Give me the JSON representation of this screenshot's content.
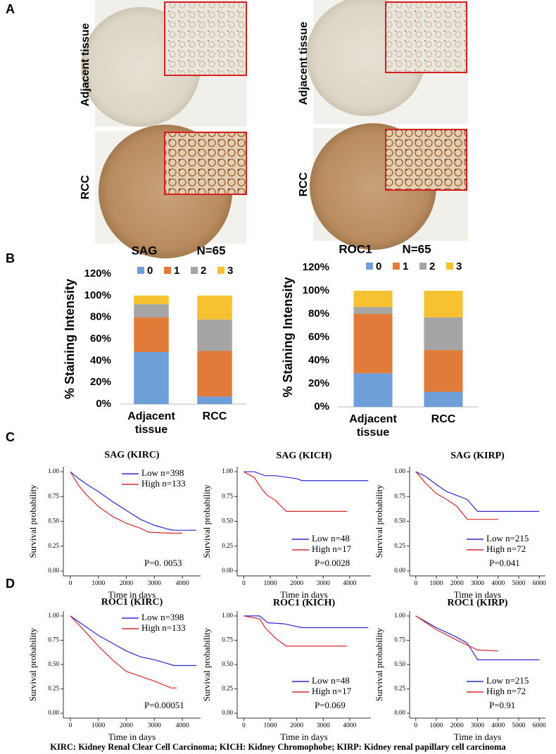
{
  "panel_labels": [
    "A",
    "B",
    "C",
    "D"
  ],
  "images": [
    {
      "label": "Adjacent tissue"
    },
    {
      "label": "RCC"
    },
    {
      "label": "Adjacent tissue"
    },
    {
      "label": "RCC"
    }
  ],
  "chart_data": [
    {
      "type": "stacked_bar",
      "title": "SAG",
      "subtitle": "N=65",
      "ylabel": "% Staining Intensity",
      "categories": [
        "Adjacent tissue",
        "RCC"
      ],
      "series": [
        {
          "name": "0",
          "color": "#6f9fd8",
          "values": [
            48,
            7
          ]
        },
        {
          "name": "1",
          "color": "#e07b39",
          "values": [
            32,
            42
          ]
        },
        {
          "name": "2",
          "color": "#a5a5a5",
          "values": [
            12,
            29
          ]
        },
        {
          "name": "3",
          "color": "#f6c232",
          "values": [
            8,
            22
          ]
        }
      ],
      "ylim": [
        0,
        120
      ],
      "yticks": [
        {
          "value": 0,
          "label": "0%"
        },
        {
          "value": 20,
          "label": "20%"
        },
        {
          "value": 40,
          "label": "40%"
        },
        {
          "value": 60,
          "label": "60%"
        },
        {
          "value": 80,
          "label": "80%"
        },
        {
          "value": 100,
          "label": "100%"
        },
        {
          "value": 120,
          "label": "120%"
        }
      ]
    },
    {
      "type": "stacked_bar",
      "title": "ROC1",
      "subtitle": "N=65",
      "ylabel": "% Staining Intensity",
      "categories": [
        "Adjacent tissue",
        "RCC"
      ],
      "series": [
        {
          "name": "0",
          "color": "#6f9fd8",
          "values": [
            29,
            13
          ]
        },
        {
          "name": "1",
          "color": "#e07b39",
          "values": [
            51,
            36
          ]
        },
        {
          "name": "2",
          "color": "#a5a5a5",
          "values": [
            6,
            28
          ]
        },
        {
          "name": "3",
          "color": "#f6c232",
          "values": [
            14,
            23
          ]
        }
      ],
      "ylim": [
        0,
        120
      ],
      "yticks": [
        {
          "value": 0,
          "label": "0%"
        },
        {
          "value": 20,
          "label": "20%"
        },
        {
          "value": 40,
          "label": "40%"
        },
        {
          "value": 60,
          "label": "60%"
        },
        {
          "value": 80,
          "label": "80%"
        },
        {
          "value": 100,
          "label": "100%"
        },
        {
          "value": 120,
          "label": "120%"
        }
      ]
    },
    {
      "type": "line",
      "title": "SAG (KIRC)",
      "xlabel": "Time in days",
      "ylabel": "Survival probability",
      "annotation": "P=0. 0053",
      "legend": "upper right",
      "xlim": [
        -250,
        4650
      ],
      "xticks": [
        0,
        1000,
        2000,
        3000,
        4000
      ],
      "ylim": [
        -0.05,
        1.05
      ],
      "yticks": [
        {
          "value": 0,
          "label": "0.00"
        },
        {
          "value": 0.25,
          "label": "0.25"
        },
        {
          "value": 0.5,
          "label": "0.50"
        },
        {
          "value": 0.75,
          "label": "0.75"
        },
        {
          "value": 1,
          "label": "1.00"
        }
      ],
      "series": [
        {
          "name": "Low n=398",
          "color": "#2a2ad8",
          "x": [
            0,
            300,
            600,
            1000,
            1500,
            2000,
            2500,
            3000,
            3500,
            3700,
            4500
          ],
          "values": [
            1,
            0.93,
            0.87,
            0.8,
            0.7,
            0.61,
            0.52,
            0.46,
            0.42,
            0.41,
            0.41
          ]
        },
        {
          "name": "High n=133",
          "color": "#d82a2a",
          "x": [
            0,
            300,
            600,
            1000,
            1500,
            2000,
            2500,
            2800,
            3600,
            4000
          ],
          "values": [
            1,
            0.86,
            0.76,
            0.65,
            0.55,
            0.48,
            0.43,
            0.39,
            0.38,
            0.38
          ]
        }
      ]
    },
    {
      "type": "line",
      "title": "SAG (KICH)",
      "xlabel": "Time in days",
      "ylabel": "Survival probability",
      "annotation": "P=0.0028",
      "legend": "lower right",
      "xlim": [
        -250,
        4800
      ],
      "xticks": [
        0,
        1000,
        2000,
        3000,
        4000
      ],
      "ylim": [
        -0.05,
        1.05
      ],
      "yticks": [
        {
          "value": 0,
          "label": "0.00"
        },
        {
          "value": 0.25,
          "label": "0.25"
        },
        {
          "value": 0.5,
          "label": "0.50"
        },
        {
          "value": 0.75,
          "label": "0.75"
        },
        {
          "value": 1,
          "label": "1.00"
        }
      ],
      "series": [
        {
          "name": "Low n=48",
          "color": "#2a2ad8",
          "x": [
            0,
            400,
            800,
            1200,
            2000,
            2200,
            4700
          ],
          "values": [
            1,
            1,
            0.96,
            0.96,
            0.93,
            0.91,
            0.91
          ]
        },
        {
          "name": "High n=17",
          "color": "#d82a2a",
          "x": [
            0,
            400,
            700,
            900,
            1200,
            1600,
            3900
          ],
          "values": [
            1,
            0.94,
            0.82,
            0.76,
            0.71,
            0.6,
            0.6
          ]
        }
      ]
    },
    {
      "type": "line",
      "title": "SAG (KIRP)",
      "xlabel": "Time in days",
      "ylabel": "Survival probability",
      "annotation": "P=0.041",
      "legend": "lower right",
      "xlim": [
        -300,
        6300
      ],
      "xticks": [
        0,
        1000,
        2000,
        3000,
        4000,
        5000,
        6000
      ],
      "ylim": [
        -0.05,
        1.05
      ],
      "yticks": [
        {
          "value": 0,
          "label": "0.00"
        },
        {
          "value": 0.25,
          "label": "0.25"
        },
        {
          "value": 0.5,
          "label": "0.50"
        },
        {
          "value": 0.75,
          "label": "0.75"
        },
        {
          "value": 1,
          "label": "1.00"
        }
      ],
      "series": [
        {
          "name": "Low n=215",
          "color": "#2a2ad8",
          "x": [
            0,
            500,
            1000,
            1500,
            2000,
            2500,
            3000,
            4000,
            6000
          ],
          "values": [
            1,
            0.95,
            0.87,
            0.8,
            0.76,
            0.72,
            0.6,
            0.6,
            0.6
          ]
        },
        {
          "name": "High n=72",
          "color": "#d82a2a",
          "x": [
            0,
            500,
            1000,
            1500,
            2000,
            2500,
            3000,
            4000
          ],
          "values": [
            1,
            0.88,
            0.78,
            0.72,
            0.65,
            0.52,
            0.52,
            0.52
          ]
        }
      ]
    },
    {
      "type": "line",
      "title": "ROC1 (KIRC)",
      "xlabel": "Time in days",
      "ylabel": "Survival probability",
      "annotation": "P=0.00051",
      "legend": "upper right",
      "xlim": [
        -250,
        4650
      ],
      "xticks": [
        0,
        1000,
        2000,
        3000,
        4000
      ],
      "ylim": [
        -0.05,
        1.05
      ],
      "yticks": [
        {
          "value": 0,
          "label": "0.00"
        },
        {
          "value": 0.25,
          "label": "0.25"
        },
        {
          "value": 0.5,
          "label": "0.50"
        },
        {
          "value": 0.75,
          "label": "0.75"
        },
        {
          "value": 1,
          "label": "1.00"
        }
      ],
      "series": [
        {
          "name": "Low n=398",
          "color": "#2a2ad8",
          "x": [
            0,
            500,
            1000,
            1500,
            2000,
            2500,
            3000,
            3700,
            4500
          ],
          "values": [
            1,
            0.9,
            0.8,
            0.72,
            0.64,
            0.58,
            0.55,
            0.49,
            0.49
          ]
        },
        {
          "name": "High n=133",
          "color": "#d82a2a",
          "x": [
            0,
            500,
            1000,
            1500,
            2000,
            2500,
            3000,
            3600,
            3800
          ],
          "values": [
            1,
            0.85,
            0.69,
            0.55,
            0.43,
            0.38,
            0.33,
            0.26,
            0.26
          ]
        }
      ]
    },
    {
      "type": "line",
      "title": "ROC1 (KICH)",
      "xlabel": "Time in days",
      "ylabel": "Survival probability",
      "annotation": "P=0.069",
      "legend": "lower right",
      "xlim": [
        -250,
        4800
      ],
      "xticks": [
        0,
        1000,
        2000,
        3000,
        4000
      ],
      "ylim": [
        -0.05,
        1.05
      ],
      "yticks": [
        {
          "value": 0,
          "label": "0.00"
        },
        {
          "value": 0.25,
          "label": "0.25"
        },
        {
          "value": 0.5,
          "label": "0.50"
        },
        {
          "value": 0.75,
          "label": "0.75"
        },
        {
          "value": 1,
          "label": "1.00"
        }
      ],
      "series": [
        {
          "name": "Low n=48",
          "color": "#2a2ad8",
          "x": [
            0,
            600,
            900,
            1500,
            2200,
            4700
          ],
          "values": [
            1,
            1,
            0.93,
            0.92,
            0.88,
            0.88
          ]
        },
        {
          "name": "High n=17",
          "color": "#d82a2a",
          "x": [
            0,
            600,
            800,
            1200,
            1600,
            3900
          ],
          "values": [
            1,
            0.97,
            0.88,
            0.77,
            0.69,
            0.69
          ]
        }
      ]
    },
    {
      "type": "line",
      "title": "ROC1 (KIRP)",
      "xlabel": "Time in days",
      "ylabel": "Survival probability",
      "annotation": "P=0.91",
      "legend": "lower right",
      "xlim": [
        -300,
        6300
      ],
      "xticks": [
        0,
        1000,
        2000,
        3000,
        4000,
        5000,
        6000
      ],
      "ylim": [
        -0.05,
        1.05
      ],
      "yticks": [
        {
          "value": 0,
          "label": "0.00"
        },
        {
          "value": 0.25,
          "label": "0.25"
        },
        {
          "value": 0.5,
          "label": "0.50"
        },
        {
          "value": 0.75,
          "label": "0.75"
        },
        {
          "value": 1,
          "label": "1.00"
        }
      ],
      "series": [
        {
          "name": "Low n=215",
          "color": "#2a2ad8",
          "x": [
            0,
            1000,
            2000,
            2500,
            2800,
            3000,
            6000
          ],
          "values": [
            1,
            0.88,
            0.78,
            0.72,
            0.62,
            0.55,
            0.55
          ]
        },
        {
          "name": "High n=72",
          "color": "#d82a2a",
          "x": [
            0,
            1000,
            2000,
            2500,
            3000,
            4000
          ],
          "values": [
            1,
            0.86,
            0.75,
            0.7,
            0.65,
            0.64
          ]
        }
      ]
    }
  ],
  "footnote": "KIRC: Kidney Renal Clear Cell Carcinoma;  KICH: Kidney Chromophobe; KIRP: Kidney renal papillary cell carcinoma"
}
